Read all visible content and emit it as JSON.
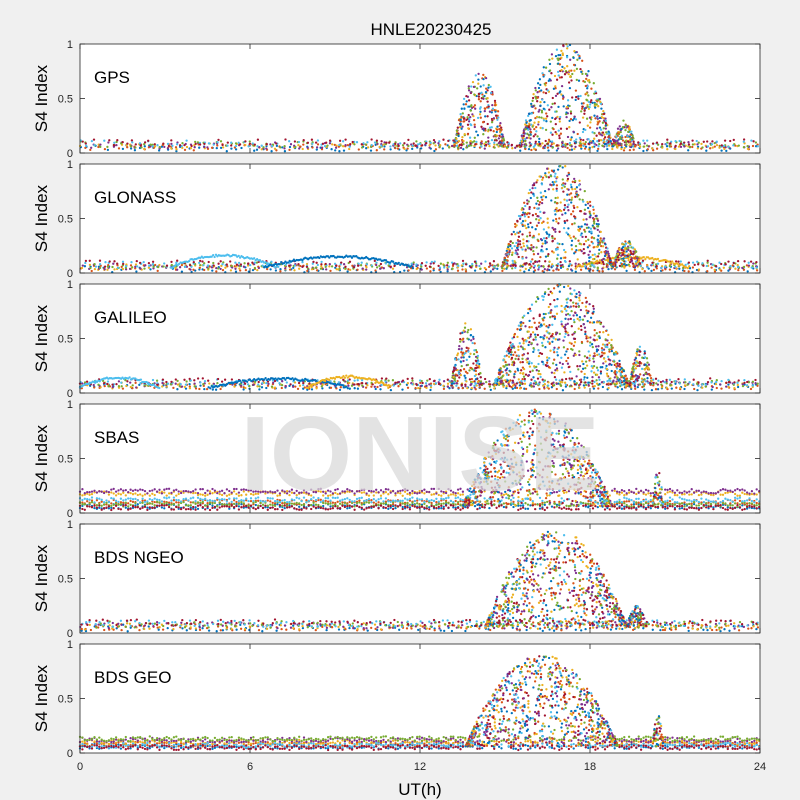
{
  "figure": {
    "title": "HNLE20230425",
    "xlabel": "UT(h)",
    "watermark": "IONISE"
  },
  "colors": [
    "#0072BD",
    "#D95319",
    "#EDB120",
    "#7E2F8E",
    "#77AC30",
    "#4DBEEE",
    "#A2142F"
  ],
  "chart_data": [
    {
      "type": "scatter",
      "panel_label": "GPS",
      "ylabel": "S4 Index",
      "xlim": [
        0,
        24
      ],
      "ylim": [
        0,
        1
      ],
      "xticks": [
        0,
        6,
        12,
        18,
        24
      ],
      "yticks": [
        0,
        0.5,
        1
      ],
      "grid": false,
      "series_count": 7,
      "baseline": 0.07,
      "bursts": [
        {
          "start": 13.2,
          "end": 15.0,
          "peak": 0.75
        },
        {
          "start": 15.5,
          "end": 18.8,
          "peak": 1.0
        },
        {
          "start": 18.8,
          "end": 19.6,
          "peak": 0.3
        }
      ]
    },
    {
      "type": "scatter",
      "panel_label": "GLONASS",
      "ylabel": "S4 Index",
      "xlim": [
        0,
        24
      ],
      "ylim": [
        0,
        1
      ],
      "xticks": [
        0,
        6,
        12,
        18,
        24
      ],
      "yticks": [
        0,
        0.5,
        1
      ],
      "grid": false,
      "series_count": 7,
      "baseline": 0.06,
      "arcs": [
        {
          "start": 3.2,
          "end": 7.0,
          "level": 0.16
        },
        {
          "start": 6.5,
          "end": 11.8,
          "level": 0.15
        },
        {
          "start": 17.5,
          "end": 21.5,
          "level": 0.14
        }
      ],
      "bursts": [
        {
          "start": 14.9,
          "end": 18.8,
          "peak": 1.0
        },
        {
          "start": 18.8,
          "end": 19.8,
          "peak": 0.3
        }
      ]
    },
    {
      "type": "scatter",
      "panel_label": "GALILEO",
      "ylabel": "S4 Index",
      "xlim": [
        0,
        24
      ],
      "ylim": [
        0,
        1
      ],
      "xticks": [
        0,
        6,
        12,
        18,
        24
      ],
      "yticks": [
        0,
        0.5,
        1
      ],
      "grid": false,
      "series_count": 7,
      "baseline": 0.08,
      "arcs": [
        {
          "start": 0.0,
          "end": 2.8,
          "level": 0.14
        },
        {
          "start": 4.6,
          "end": 9.5,
          "level": 0.13
        },
        {
          "start": 8.0,
          "end": 11.0,
          "level": 0.15
        }
      ],
      "bursts": [
        {
          "start": 13.1,
          "end": 14.2,
          "peak": 0.65
        },
        {
          "start": 14.6,
          "end": 19.4,
          "peak": 1.0
        },
        {
          "start": 19.4,
          "end": 20.2,
          "peak": 0.45
        }
      ]
    },
    {
      "type": "scatter",
      "panel_label": "SBAS",
      "ylabel": "S4 Index",
      "xlim": [
        0,
        24
      ],
      "ylim": [
        0,
        1
      ],
      "xticks": [
        0,
        6,
        12,
        18,
        24
      ],
      "yticks": [
        0,
        0.5,
        1
      ],
      "grid": false,
      "series_count": 7,
      "band_levels": [
        0.06,
        0.1,
        0.18,
        0.2,
        0.08,
        0.12,
        0.05
      ],
      "bursts": [
        {
          "start": 13.5,
          "end": 18.8,
          "peak": 0.95
        },
        {
          "start": 20.2,
          "end": 20.6,
          "peak": 0.4
        }
      ]
    },
    {
      "type": "scatter",
      "panel_label": "BDS NGEO",
      "ylabel": "S4 Index",
      "xlim": [
        0,
        24
      ],
      "ylim": [
        0,
        1
      ],
      "xticks": [
        0,
        6,
        12,
        18,
        24
      ],
      "yticks": [
        0,
        0.5,
        1
      ],
      "grid": false,
      "series_count": 7,
      "baseline": 0.07,
      "bursts": [
        {
          "start": 14.3,
          "end": 19.3,
          "peak": 0.95
        },
        {
          "start": 19.3,
          "end": 20.0,
          "peak": 0.25
        }
      ]
    },
    {
      "type": "scatter",
      "panel_label": "BDS GEO",
      "ylabel": "S4 Index",
      "xlim": [
        0,
        24
      ],
      "ylim": [
        0,
        1
      ],
      "xticks": [
        0,
        6,
        12,
        18,
        24
      ],
      "yticks": [
        0,
        0.5,
        1
      ],
      "grid": false,
      "series_count": 7,
      "band_levels": [
        0.06,
        0.08,
        0.1,
        0.12,
        0.13,
        0.07,
        0.05
      ],
      "bursts": [
        {
          "start": 13.6,
          "end": 19.0,
          "peak": 0.9
        },
        {
          "start": 20.2,
          "end": 20.6,
          "peak": 0.35
        }
      ]
    }
  ]
}
